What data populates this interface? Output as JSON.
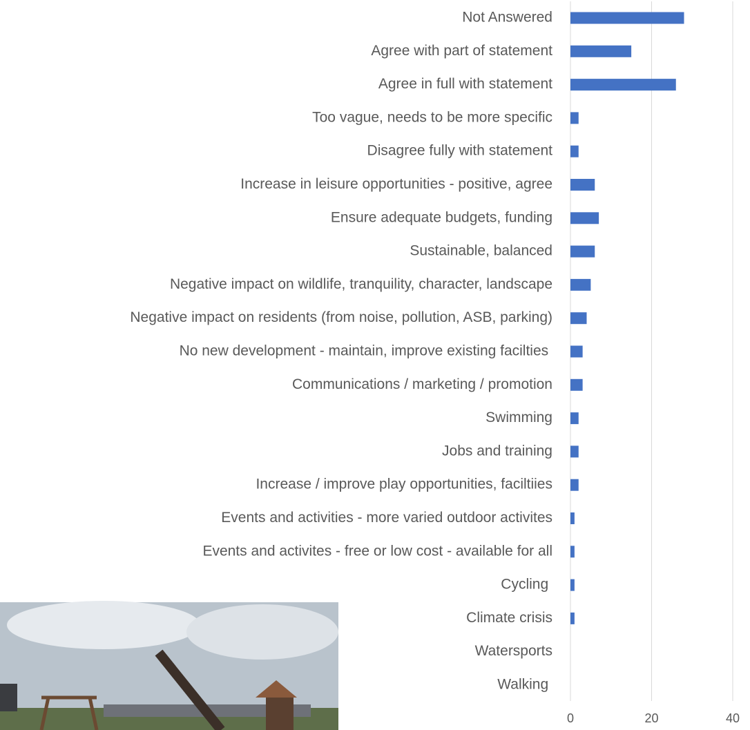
{
  "chart_data": {
    "type": "bar",
    "orientation": "horizontal",
    "categories": [
      "Not Answered",
      "Agree with part of statement",
      "Agree in full with statement",
      "Too vague, needs to be more specific",
      "Disagree fully with statement",
      "Increase in leisure opportunities - positive, agree",
      "Ensure adequate budgets, funding",
      "Sustainable, balanced",
      "Negative impact on wildlife, tranquility, character, landscape",
      "Negative impact on residents (from noise, pollution, ASB, parking)",
      "No new development - maintain, improve existing facilties ",
      "Communications / marketing / promotion",
      "Swimming",
      "Jobs and training",
      "Increase / improve play opportunities, faciltiies",
      "Events and activities - more varied outdoor activites",
      "Events and activites - free or low cost - available for all",
      "Cycling ",
      "Climate crisis",
      "Watersports",
      "Walking "
    ],
    "values": [
      28,
      15,
      26,
      2,
      2,
      6,
      7,
      6,
      5,
      4,
      3,
      3,
      2,
      2,
      2,
      1,
      1,
      1,
      1,
      0,
      0
    ],
    "color": "#4472c4",
    "xlim": [
      0,
      40
    ],
    "xticks": [
      0,
      20,
      40
    ],
    "grid": true
  }
}
